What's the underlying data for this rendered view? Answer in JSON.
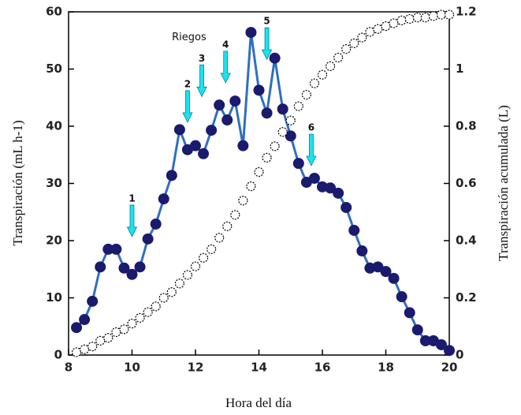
{
  "chart_data": {
    "type": "line",
    "x_label": "Hora del día",
    "y_label": "Transpiración (mL h-1)",
    "y2_label": "Transpiración acumulada (L)",
    "x": [
      8.25,
      8.5,
      8.75,
      9,
      9.25,
      9.5,
      9.75,
      10,
      10.25,
      10.5,
      10.75,
      11,
      11.25,
      11.5,
      11.75,
      12,
      12.25,
      12.5,
      12.75,
      13,
      13.25,
      13.5,
      13.75,
      14,
      14.25,
      14.5,
      14.75,
      15,
      15.25,
      15.5,
      15.75,
      16,
      16.25,
      16.5,
      16.75,
      17,
      17.25,
      17.5,
      17.75,
      18,
      18.25,
      18.5,
      18.75,
      19,
      19.25,
      19.5,
      19.75,
      20
    ],
    "series": [
      {
        "color": "#1a1a6e",
        "values": [
          4.8,
          6.2,
          9.4,
          15.4,
          18.5,
          18.5,
          15.2,
          14.1,
          15.4,
          20.3,
          22.9,
          27.3,
          31.4,
          39.4,
          35.9,
          36.6,
          35.2,
          39.3,
          43.7,
          41.1,
          44.4,
          36.6,
          56.4,
          46.3,
          42.3,
          51.9,
          43,
          38.3,
          33.5,
          30.2,
          30.9,
          29.4,
          29.2,
          28.3,
          25.8,
          21.8,
          18.2,
          15.2,
          15.4,
          14.6,
          13.4,
          10.2,
          7.4,
          4.4,
          2.5,
          2.5,
          1.8,
          0.8
        ]
      },
      {
        "color": "#000000",
        "axis": "y2",
        "values": [
          0.01,
          0.02,
          0.03,
          0.05,
          0.06,
          0.08,
          0.09,
          0.11,
          0.13,
          0.15,
          0.17,
          0.2,
          0.22,
          0.25,
          0.28,
          0.31,
          0.34,
          0.37,
          0.41,
          0.45,
          0.49,
          0.54,
          0.59,
          0.64,
          0.69,
          0.73,
          0.78,
          0.82,
          0.87,
          0.91,
          0.95,
          0.98,
          1.01,
          1.04,
          1.07,
          1.09,
          1.11,
          1.13,
          1.14,
          1.15,
          1.16,
          1.17,
          1.175,
          1.18,
          1.18,
          1.185,
          1.19,
          1.19
        ]
      }
    ],
    "xlim": [
      8,
      20
    ],
    "xticks": [
      8,
      10,
      12,
      14,
      16,
      18,
      20
    ],
    "ylim": [
      0,
      60
    ],
    "yticks": [
      0,
      10,
      20,
      30,
      40,
      50,
      60
    ],
    "y2lim": [
      0,
      1.2
    ],
    "y2ticks": [
      0,
      0.2,
      0.4,
      0.6,
      0.8,
      1,
      1.2
    ],
    "annotations_title": {
      "text": "Riegos",
      "x": 11.8,
      "y": 55.5
    },
    "annotations": [
      {
        "text": "1",
        "x": 10,
        "y": 20.7
      },
      {
        "text": "2",
        "x": 11.75,
        "y": 40.7
      },
      {
        "text": "3",
        "x": 12.2,
        "y": 45.2
      },
      {
        "text": "4",
        "x": 12.95,
        "y": 47.6
      },
      {
        "text": "5",
        "x": 14.25,
        "y": 51.7
      },
      {
        "text": "6",
        "x": 15.65,
        "y": 33.1
      }
    ]
  }
}
